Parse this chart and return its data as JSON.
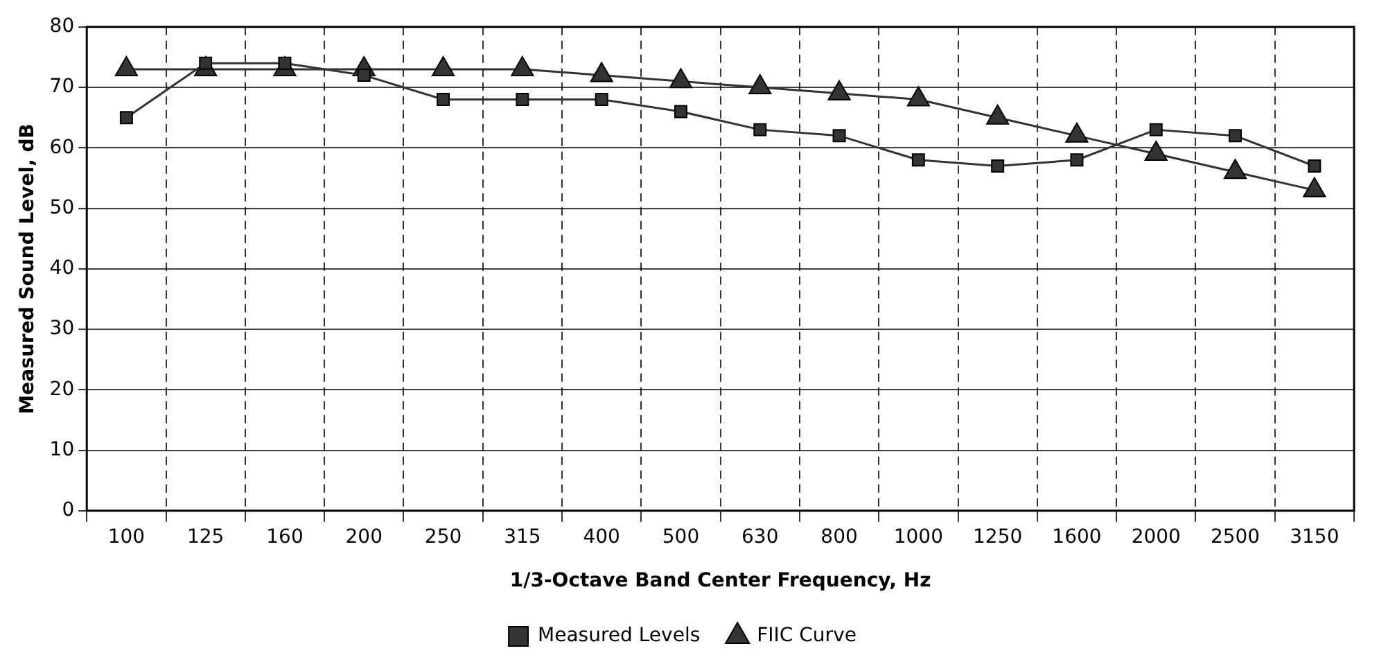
{
  "chart_data": {
    "type": "line",
    "xlabel": "1/3-Octave Band Center Frequency, Hz",
    "ylabel": "Measured Sound Level, dB",
    "categories": [
      "100",
      "125",
      "160",
      "200",
      "250",
      "315",
      "400",
      "500",
      "630",
      "800",
      "1000",
      "1250",
      "1600",
      "2000",
      "2500",
      "3150"
    ],
    "series": [
      {
        "name": "Measured Levels",
        "color": "#333333",
        "marker": "square",
        "values": [
          65,
          74,
          74,
          72,
          68,
          68,
          68,
          66,
          63,
          62,
          58,
          57,
          58,
          63,
          62,
          57
        ]
      },
      {
        "name": "FIIC Curve",
        "color": "#333333",
        "marker": "triangle",
        "values": [
          73,
          73,
          73,
          73,
          73,
          73,
          72,
          71,
          70,
          69,
          68,
          65,
          62,
          59,
          56,
          53
        ]
      }
    ],
    "ylim": [
      0,
      80
    ],
    "yticks": [
      0,
      10,
      20,
      30,
      40,
      50,
      60,
      70,
      80
    ],
    "grid": true,
    "legend": "bottom",
    "line_style": "solid"
  }
}
